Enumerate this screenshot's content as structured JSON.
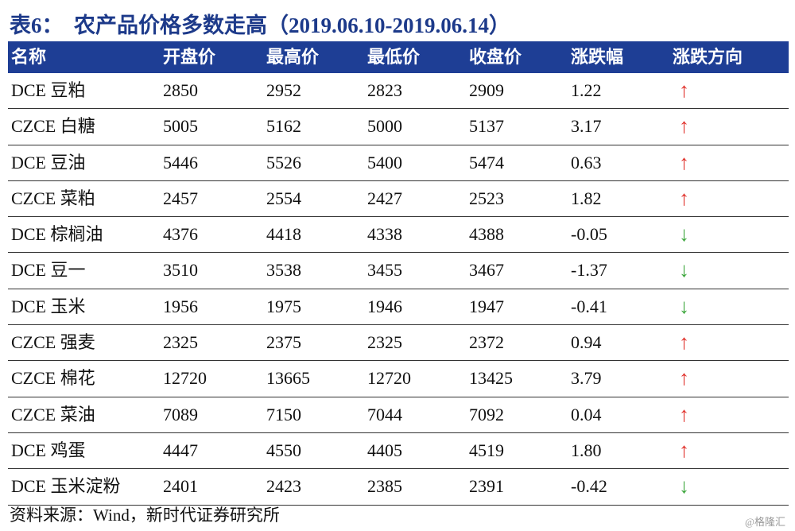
{
  "header": {
    "title": "表6：  农产品价格多数走高（2019.06.10-2019.06.14）"
  },
  "table": {
    "columns": [
      "名称",
      "开盘价",
      "最高价",
      "最低价",
      "收盘价",
      "涨跌幅",
      "涨跌方向"
    ],
    "rows": [
      [
        "DCE 豆粕",
        "2850",
        "2952",
        "2823",
        "2909",
        "1.22",
        "↑"
      ],
      [
        "CZCE 白糖",
        "5005",
        "5162",
        "5000",
        "5137",
        "3.17",
        "↑"
      ],
      [
        "DCE 豆油",
        "5446",
        "5526",
        "5400",
        "5474",
        "0.63",
        "↑"
      ],
      [
        "CZCE 菜粕",
        "2457",
        "2554",
        "2427",
        "2523",
        "1.82",
        "↑"
      ],
      [
        "DCE 棕榈油",
        "4376",
        "4418",
        "4338",
        "4388",
        "-0.05",
        "↓"
      ],
      [
        "DCE 豆一",
        "3510",
        "3538",
        "3455",
        "3467",
        "-1.37",
        "↓"
      ],
      [
        "DCE 玉米",
        "1956",
        "1975",
        "1946",
        "1947",
        "-0.41",
        "↓"
      ],
      [
        "CZCE 强麦",
        "2325",
        "2375",
        "2325",
        "2372",
        "0.94",
        "↑"
      ],
      [
        "CZCE 棉花",
        "12720",
        "13665",
        "12720",
        "13425",
        "3.79",
        "↑"
      ],
      [
        "CZCE 菜油",
        "7089",
        "7150",
        "7044",
        "7092",
        "0.04",
        "↑"
      ],
      [
        "DCE 鸡蛋",
        "4447",
        "4550",
        "4405",
        "4519",
        "1.80",
        "↑"
      ],
      [
        "DCE 玉米淀粉",
        "2401",
        "2423",
        "2385",
        "2391",
        "-0.42",
        "↓"
      ]
    ],
    "arrow_colors": {
      "↑": "#e0302a",
      "↓": "#3aa53a"
    }
  },
  "footer": {
    "source": "资料来源：Wind，新时代证券研究所",
    "watermark": "@格隆汇"
  }
}
